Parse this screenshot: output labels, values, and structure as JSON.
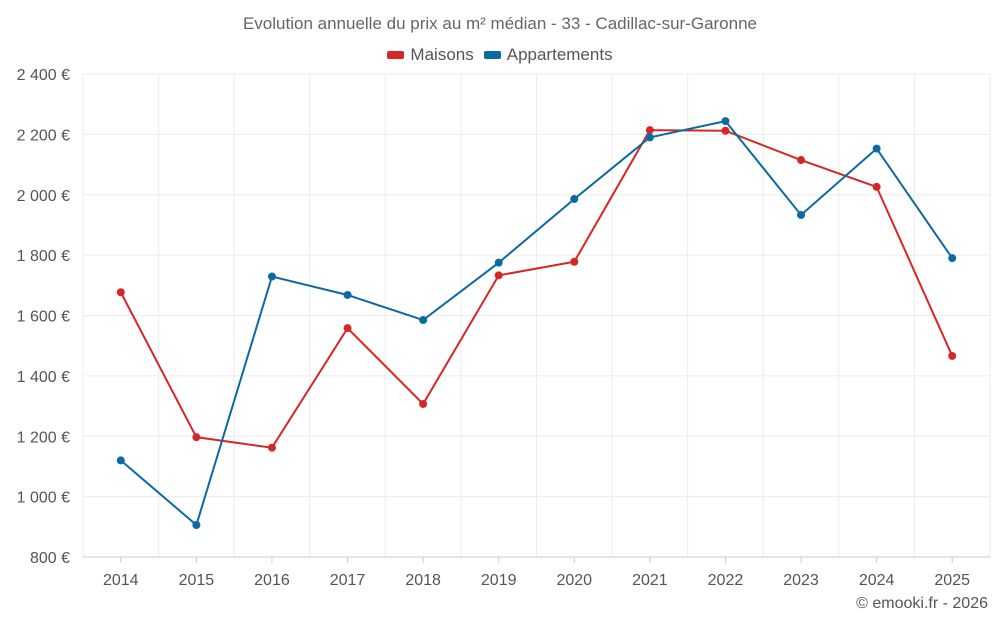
{
  "chart_data": {
    "type": "line",
    "title": "Evolution annuelle du prix au m² médian - 33 - Cadillac-sur-Garonne",
    "categories": [
      "2014",
      "2015",
      "2016",
      "2017",
      "2018",
      "2019",
      "2020",
      "2021",
      "2022",
      "2023",
      "2024",
      "2025"
    ],
    "series": [
      {
        "name": "Maisons",
        "color": "#d62728",
        "values": [
          1677,
          1197,
          1162,
          1558,
          1307,
          1733,
          1778,
          2214,
          2212,
          2115,
          2026,
          1466
        ]
      },
      {
        "name": "Appartements",
        "color": "#0a6aa1",
        "values": [
          1120,
          906,
          1729,
          1668,
          1585,
          1775,
          1986,
          2190,
          2244,
          1933,
          2153,
          1790
        ]
      }
    ],
    "ylim": [
      800,
      2400
    ],
    "yticks": [
      800,
      1000,
      1200,
      1400,
      1600,
      1800,
      2000,
      2200,
      2400
    ],
    "ytick_labels": [
      "800 €",
      "1 000 €",
      "1 200 €",
      "1 400 €",
      "1 600 €",
      "1 800 €",
      "2 000 €",
      "2 200 €",
      "2 400 €"
    ],
    "xlabel": "",
    "ylabel": "",
    "grid": true,
    "legend_position": "top-center"
  },
  "footer": {
    "copyright": "© emooki.fr - 2026"
  }
}
